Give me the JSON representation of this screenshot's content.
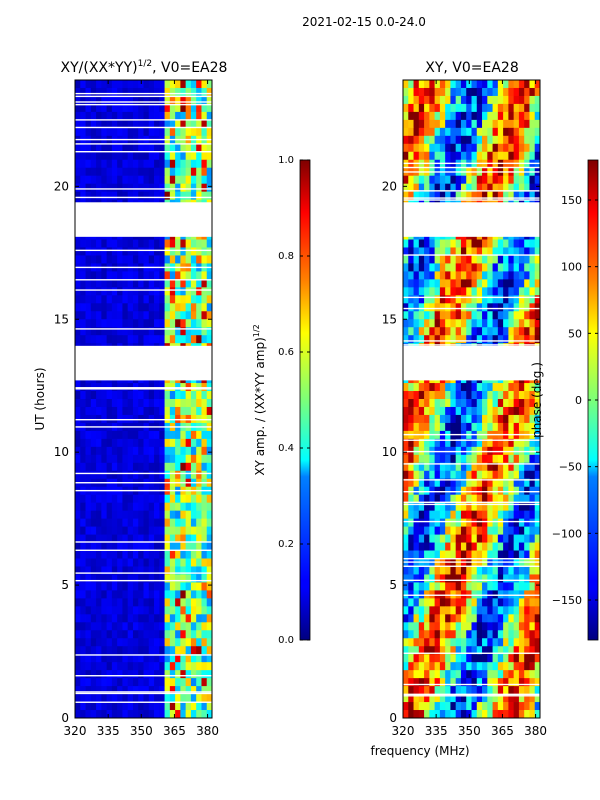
{
  "figure_title": "2021-02-15 0.0-24.0",
  "chart_data": [
    {
      "type": "heatmap",
      "title_main": "XY/(XX*YY)",
      "title_exp": "1/2",
      "title_suffix": ", V0=EA28",
      "ylabel": "UT (hours)",
      "xlabel": "",
      "xlim": [
        320,
        382
      ],
      "ylim": [
        0,
        24
      ],
      "xticks": [
        "320",
        "335",
        "350",
        "365",
        "380"
      ],
      "xtick_values": [
        320,
        335,
        350,
        365,
        380
      ],
      "yticks": [
        "0",
        "5",
        "10",
        "15",
        "20"
      ],
      "ytick_values": [
        0,
        5,
        10,
        15,
        20
      ],
      "colorbar": {
        "label_main": "XY amp. / (XX*YY amp)",
        "label_exp": "1/2",
        "ticks": [
          "0.0",
          "0.2",
          "0.4",
          "0.6",
          "0.8",
          "1.0"
        ],
        "tick_values": [
          0.0,
          0.2,
          0.4,
          0.6,
          0.8,
          1.0
        ],
        "range": [
          0.0,
          1.0
        ]
      },
      "gaps_hours": [
        [
          12.7,
          14.0
        ],
        [
          18.1,
          19.4
        ]
      ]
    },
    {
      "type": "heatmap",
      "title": "XY, V0=EA28",
      "xlabel": "frequency (MHz)",
      "xlim": [
        320,
        382
      ],
      "ylim": [
        0,
        24
      ],
      "xticks": [
        "320",
        "335",
        "350",
        "365",
        "380"
      ],
      "xtick_values": [
        320,
        335,
        350,
        365,
        380
      ],
      "yticks": [
        "0",
        "5",
        "10",
        "15",
        "20"
      ],
      "ytick_values": [
        0,
        5,
        10,
        15,
        20
      ],
      "colorbar": {
        "label": "phase (deg.)",
        "ticks": [
          "−150",
          "−100",
          "−50",
          "0",
          "50",
          "100",
          "150"
        ],
        "tick_values": [
          -150,
          -100,
          -50,
          0,
          50,
          100,
          150
        ],
        "range": [
          -180,
          180
        ]
      },
      "gaps_hours": [
        [
          12.7,
          14.0
        ],
        [
          18.1,
          19.4
        ]
      ]
    }
  ]
}
